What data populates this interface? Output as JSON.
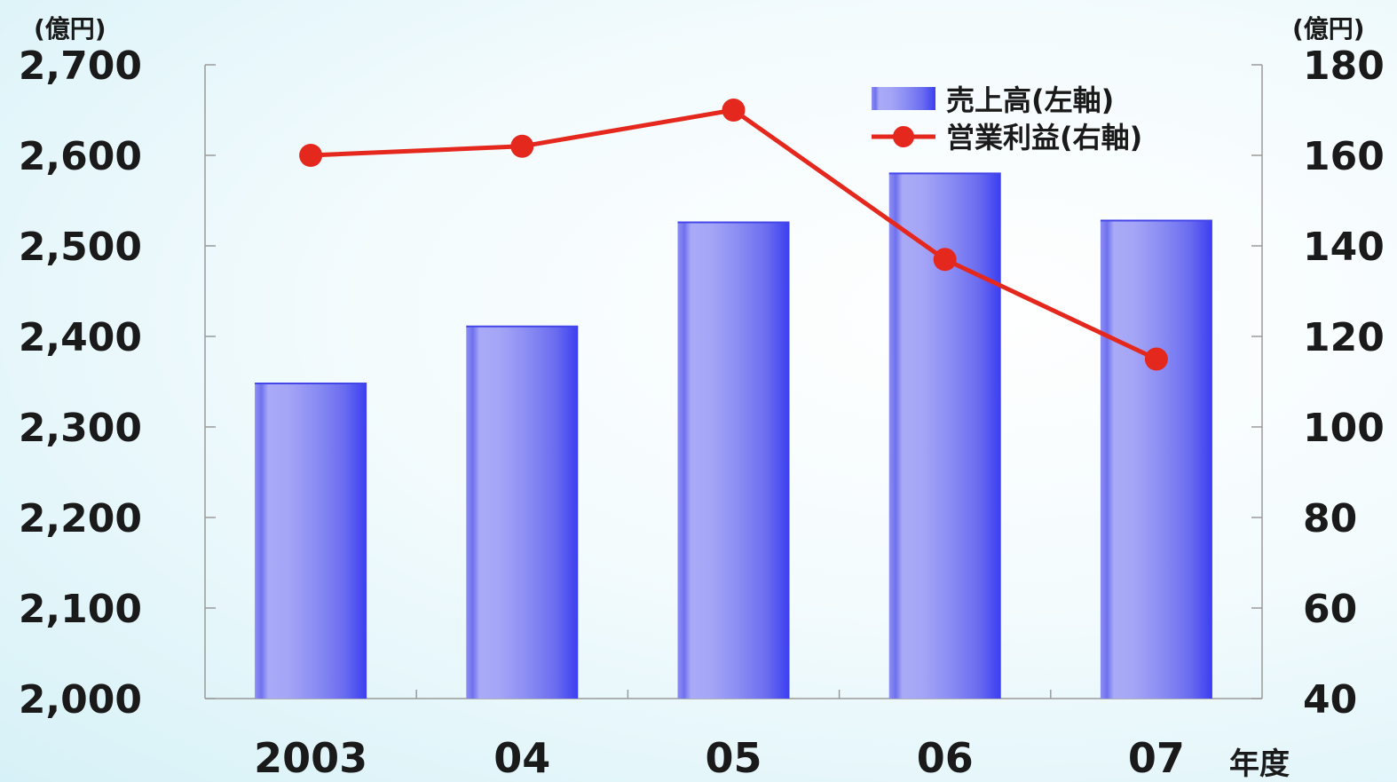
{
  "chart_data": {
    "type": "bar",
    "categories": [
      "2003",
      "04",
      "05",
      "06",
      "07"
    ],
    "xlabel": "年度",
    "left_axis": {
      "unit": "(億円)",
      "ylim": [
        2000,
        2700
      ],
      "ticks": [
        "2,000",
        "2,100",
        "2,200",
        "2,300",
        "2,400",
        "2,500",
        "2,600",
        "2,700"
      ]
    },
    "right_axis": {
      "unit": "(億円)",
      "ylim": [
        40,
        180
      ],
      "ticks": [
        "40",
        "60",
        "80",
        "100",
        "120",
        "140",
        "160",
        "180"
      ]
    },
    "series": [
      {
        "name": "売上高(左軸)",
        "type": "bar",
        "axis": "left",
        "values": [
          2348,
          2411,
          2526,
          2580,
          2528
        ],
        "color": "#5a5cf0"
      },
      {
        "name": "営業利益(右軸)",
        "type": "line",
        "axis": "right",
        "values": [
          160,
          162,
          170,
          137,
          115
        ],
        "color": "#e5281e"
      }
    ],
    "legend_position": "top-right",
    "grid": false
  }
}
